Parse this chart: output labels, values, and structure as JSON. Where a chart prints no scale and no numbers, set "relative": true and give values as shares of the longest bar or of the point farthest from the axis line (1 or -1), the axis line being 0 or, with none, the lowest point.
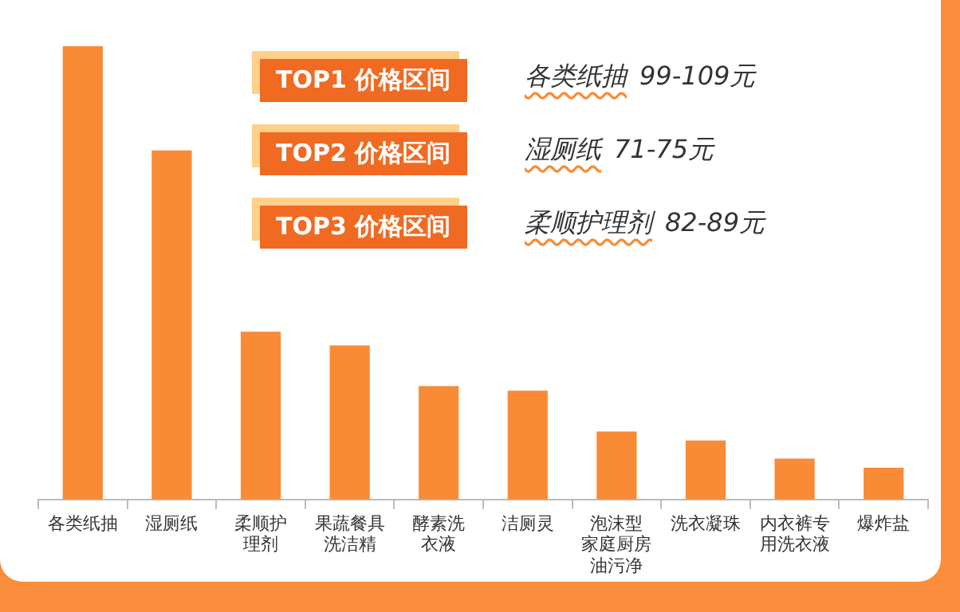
{
  "chart_data": {
    "type": "bar",
    "relative": true,
    "categories": [
      "各类纸抽",
      "湿厕纸",
      "柔顺护理剂",
      "果蔬餐具洗洁精",
      "酵素洗衣液",
      "洁厕灵",
      "泡沫型家庭厨房油污净",
      "洗衣凝珠",
      "内衣裤专用洗衣液",
      "爆炸盐"
    ],
    "values": [
      1,
      0.77,
      0.37,
      0.34,
      0.25,
      0.24,
      0.15,
      0.13,
      0.09,
      0.07
    ],
    "color": "#f98a36",
    "grid": false,
    "legend": false,
    "annotations": [
      "TOP1 价格区间",
      "各类纸抽  99-109元",
      "TOP2 价格区间",
      "湿厕纸  71-75元",
      "TOP3 价格区间",
      "柔顺护理剂  82-89元"
    ]
  }
}
